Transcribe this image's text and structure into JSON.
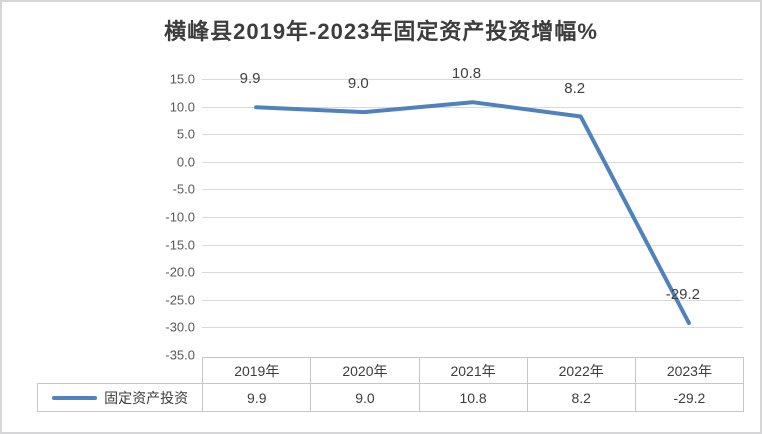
{
  "title": "横峰县2019年-2023年固定资产投资增幅%",
  "chart_data": {
    "type": "line",
    "title": "横峰县2019年-2023年固定资产投资增幅%",
    "categories": [
      "2019年",
      "2020年",
      "2021年",
      "2022年",
      "2023年"
    ],
    "series": [
      {
        "name": "固定资产投资",
        "values": [
          9.9,
          9.0,
          10.8,
          8.2,
          -29.2
        ],
        "value_labels": [
          "9.9",
          "9.0",
          "10.8",
          "8.2",
          "-29.2"
        ],
        "color": "#4F81BD"
      }
    ],
    "ylim": [
      -35,
      15
    ],
    "y_tick_step": 5,
    "y_tick_labels": [
      "15.0",
      "10.0",
      "5.0",
      "0.0",
      "-5.0",
      "-10.0",
      "-15.0",
      "-20.0",
      "-25.0",
      "-30.0",
      "-35.0"
    ],
    "grid": true,
    "data_labels_shown": true,
    "legend_position": "data-table-left",
    "data_table_shown": true
  },
  "colors": {
    "series_line": "#4F81BD",
    "gridline": "#D9D9D9",
    "table_border": "#C6C6C6",
    "frame_border": "#D6D6D8",
    "axis_text": "#595959",
    "title_text": "#3D3D3D",
    "background": "#FFFFFF"
  }
}
